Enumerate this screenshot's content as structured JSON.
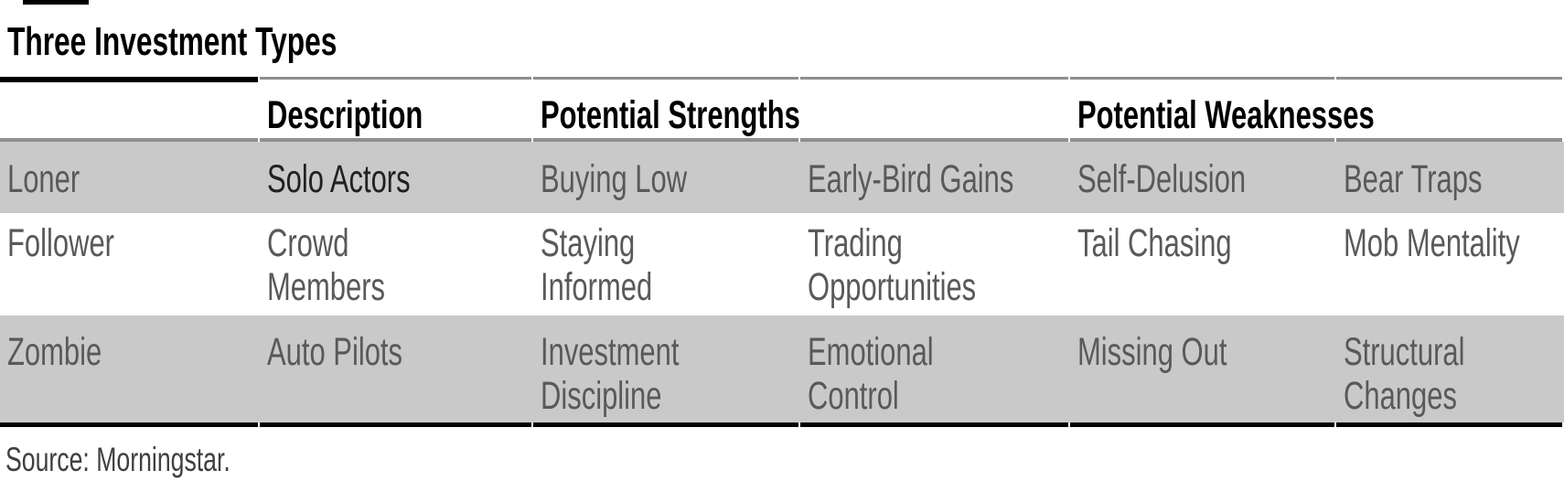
{
  "title": "Three Investment Types",
  "source_note": "Source: Morningstar.",
  "colors": {
    "row_shade": "#c9c9c9",
    "body_text": "#59595b",
    "emphasis_text": "#212121",
    "source_text": "#404042",
    "rule_gray": "#8e8e90",
    "rule_black": "#000000"
  },
  "table": {
    "headers": {
      "description": "Description",
      "strengths": "Potential Strengths",
      "weaknesses": "Potential Weaknesses"
    },
    "rows": [
      {
        "type": "Loner",
        "description": "Solo Actors",
        "strength_1": "Buying Low",
        "strength_2": "Early-Bird Gains",
        "weakness_1": "Self-Delusion",
        "weakness_2": "Bear Traps"
      },
      {
        "type": "Follower",
        "description": "Crowd\nMembers",
        "strength_1": "Staying\nInformed",
        "strength_2": "Trading\nOpportunities",
        "weakness_1": "Tail Chasing",
        "weakness_2": "Mob Mentality"
      },
      {
        "type": "Zombie",
        "description": "Auto Pilots",
        "strength_1": "Investment\nDiscipline",
        "strength_2": "Emotional\nControl",
        "weakness_1": "Missing Out",
        "weakness_2": "Structural\nChanges"
      }
    ]
  }
}
